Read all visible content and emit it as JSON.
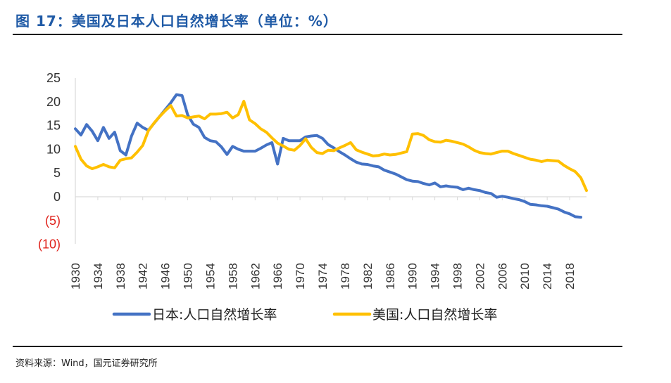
{
  "header": {
    "title": "图 17：美国及日本人口自然增长率（单位：%）"
  },
  "footer": {
    "source": "资料来源：Wind，国元证券研究所"
  },
  "colors": {
    "japan": "#4472c4",
    "usa": "#ffc000",
    "negative": "#e0231c",
    "axis": "#d9d9d9"
  },
  "chart_data": {
    "type": "line",
    "title": "美国及日本人口自然增长率",
    "unit": "%",
    "ylim": [
      -10,
      25
    ],
    "yticks": [
      25,
      20,
      15,
      10,
      5,
      0,
      -5,
      -10
    ],
    "ytick_labels": [
      "25",
      "20",
      "15",
      "10",
      "5",
      "0",
      "(5)",
      "(10)"
    ],
    "xlim": [
      1930,
      2021
    ],
    "xticks": [
      1930,
      1934,
      1938,
      1942,
      1946,
      1950,
      1954,
      1958,
      1962,
      1966,
      1970,
      1974,
      1978,
      1982,
      1986,
      1990,
      1994,
      1998,
      2002,
      2006,
      2010,
      2014,
      2018
    ],
    "legend_position": "bottom",
    "grid": false,
    "series": [
      {
        "name": "日本:人口自然增长率",
        "color": "#4472c4",
        "points": [
          [
            1930,
            14.3
          ],
          [
            1931,
            13.0
          ],
          [
            1932,
            15.2
          ],
          [
            1933,
            13.8
          ],
          [
            1934,
            11.8
          ],
          [
            1935,
            14.6
          ],
          [
            1936,
            12.3
          ],
          [
            1937,
            13.6
          ],
          [
            1938,
            9.7
          ],
          [
            1939,
            8.8
          ],
          [
            1940,
            12.8
          ],
          [
            1941,
            15.5
          ],
          [
            1942,
            14.6
          ],
          [
            1943,
            14.0
          ],
          [
            1947,
            19.8
          ],
          [
            1948,
            21.5
          ],
          [
            1949,
            21.3
          ],
          [
            1950,
            17.2
          ],
          [
            1951,
            15.3
          ],
          [
            1952,
            14.6
          ],
          [
            1953,
            12.5
          ],
          [
            1954,
            11.8
          ],
          [
            1955,
            11.6
          ],
          [
            1956,
            10.5
          ],
          [
            1957,
            8.9
          ],
          [
            1958,
            10.6
          ],
          [
            1959,
            10.0
          ],
          [
            1960,
            9.6
          ],
          [
            1961,
            9.6
          ],
          [
            1962,
            9.6
          ],
          [
            1963,
            10.2
          ],
          [
            1964,
            10.9
          ],
          [
            1965,
            11.4
          ],
          [
            1966,
            6.9
          ],
          [
            1967,
            12.3
          ],
          [
            1968,
            11.8
          ],
          [
            1969,
            11.8
          ],
          [
            1970,
            11.8
          ],
          [
            1971,
            12.6
          ],
          [
            1972,
            12.8
          ],
          [
            1973,
            12.9
          ],
          [
            1974,
            12.3
          ],
          [
            1975,
            11.0
          ],
          [
            1976,
            10.3
          ],
          [
            1977,
            9.5
          ],
          [
            1978,
            8.8
          ],
          [
            1979,
            8.0
          ],
          [
            1980,
            7.3
          ],
          [
            1981,
            6.9
          ],
          [
            1982,
            6.8
          ],
          [
            1983,
            6.5
          ],
          [
            1984,
            6.3
          ],
          [
            1985,
            5.6
          ],
          [
            1986,
            5.2
          ],
          [
            1987,
            4.8
          ],
          [
            1988,
            4.2
          ],
          [
            1989,
            3.6
          ],
          [
            1990,
            3.3
          ],
          [
            1991,
            3.2
          ],
          [
            1992,
            2.8
          ],
          [
            1993,
            2.5
          ],
          [
            1994,
            2.9
          ],
          [
            1995,
            2.1
          ],
          [
            1996,
            2.3
          ],
          [
            1997,
            2.1
          ],
          [
            1998,
            2.0
          ],
          [
            1999,
            1.5
          ],
          [
            2000,
            1.8
          ],
          [
            2001,
            1.5
          ],
          [
            2002,
            1.3
          ],
          [
            2003,
            0.9
          ],
          [
            2004,
            0.7
          ],
          [
            2005,
            -0.1
          ],
          [
            2006,
            0.1
          ],
          [
            2007,
            -0.1
          ],
          [
            2008,
            -0.4
          ],
          [
            2009,
            -0.6
          ],
          [
            2010,
            -1.0
          ],
          [
            2011,
            -1.6
          ],
          [
            2012,
            -1.7
          ],
          [
            2013,
            -1.9
          ],
          [
            2014,
            -2.0
          ],
          [
            2015,
            -2.3
          ],
          [
            2016,
            -2.6
          ],
          [
            2017,
            -3.2
          ],
          [
            2018,
            -3.6
          ],
          [
            2019,
            -4.2
          ],
          [
            2020,
            -4.3
          ]
        ]
      },
      {
        "name": "美国:人口自然增长率",
        "color": "#ffc000",
        "points": [
          [
            1930,
            10.6
          ],
          [
            1931,
            7.9
          ],
          [
            1932,
            6.5
          ],
          [
            1933,
            5.9
          ],
          [
            1934,
            6.3
          ],
          [
            1935,
            6.8
          ],
          [
            1936,
            6.3
          ],
          [
            1937,
            6.1
          ],
          [
            1938,
            7.7
          ],
          [
            1939,
            8.0
          ],
          [
            1940,
            8.2
          ],
          [
            1941,
            9.4
          ],
          [
            1942,
            10.8
          ],
          [
            1943,
            13.9
          ],
          [
            1944,
            15.5
          ],
          [
            1945,
            16.9
          ],
          [
            1946,
            18.1
          ],
          [
            1947,
            19.2
          ],
          [
            1948,
            17.0
          ],
          [
            1949,
            17.1
          ],
          [
            1950,
            16.6
          ],
          [
            1951,
            16.8
          ],
          [
            1952,
            17.0
          ],
          [
            1953,
            16.4
          ],
          [
            1954,
            17.4
          ],
          [
            1955,
            17.4
          ],
          [
            1956,
            17.5
          ],
          [
            1957,
            17.8
          ],
          [
            1958,
            16.6
          ],
          [
            1959,
            17.3
          ],
          [
            1960,
            20.1
          ],
          [
            1961,
            16.2
          ],
          [
            1962,
            15.4
          ],
          [
            1963,
            14.3
          ],
          [
            1964,
            13.6
          ],
          [
            1965,
            12.4
          ],
          [
            1966,
            11.3
          ],
          [
            1967,
            10.7
          ],
          [
            1968,
            10.0
          ],
          [
            1969,
            9.8
          ],
          [
            1970,
            10.8
          ],
          [
            1971,
            12.2
          ],
          [
            1972,
            10.4
          ],
          [
            1973,
            9.3
          ],
          [
            1974,
            9.1
          ],
          [
            1975,
            9.8
          ],
          [
            1976,
            9.7
          ],
          [
            1977,
            10.3
          ],
          [
            1978,
            10.8
          ],
          [
            1979,
            11.4
          ],
          [
            1980,
            9.9
          ],
          [
            1981,
            9.4
          ],
          [
            1982,
            9.0
          ],
          [
            1983,
            8.6
          ],
          [
            1984,
            8.7
          ],
          [
            1985,
            9.0
          ],
          [
            1986,
            8.8
          ],
          [
            1987,
            8.9
          ],
          [
            1988,
            9.2
          ],
          [
            1989,
            9.5
          ],
          [
            1990,
            13.2
          ],
          [
            1991,
            13.3
          ],
          [
            1992,
            12.9
          ],
          [
            1993,
            12.0
          ],
          [
            1994,
            11.6
          ],
          [
            1995,
            11.5
          ],
          [
            1996,
            11.9
          ],
          [
            1997,
            11.7
          ],
          [
            1998,
            11.4
          ],
          [
            1999,
            11.1
          ],
          [
            2000,
            10.5
          ],
          [
            2001,
            9.8
          ],
          [
            2002,
            9.3
          ],
          [
            2003,
            9.1
          ],
          [
            2004,
            9.0
          ],
          [
            2005,
            9.3
          ],
          [
            2006,
            9.6
          ],
          [
            2007,
            9.6
          ],
          [
            2008,
            9.1
          ],
          [
            2009,
            8.7
          ],
          [
            2010,
            8.3
          ],
          [
            2011,
            7.9
          ],
          [
            2012,
            7.7
          ],
          [
            2013,
            7.4
          ],
          [
            2014,
            7.7
          ],
          [
            2015,
            7.6
          ],
          [
            2016,
            7.5
          ],
          [
            2017,
            6.6
          ],
          [
            2018,
            5.9
          ],
          [
            2019,
            5.3
          ],
          [
            2020,
            4.0
          ],
          [
            2021,
            1.3
          ]
        ]
      }
    ]
  }
}
